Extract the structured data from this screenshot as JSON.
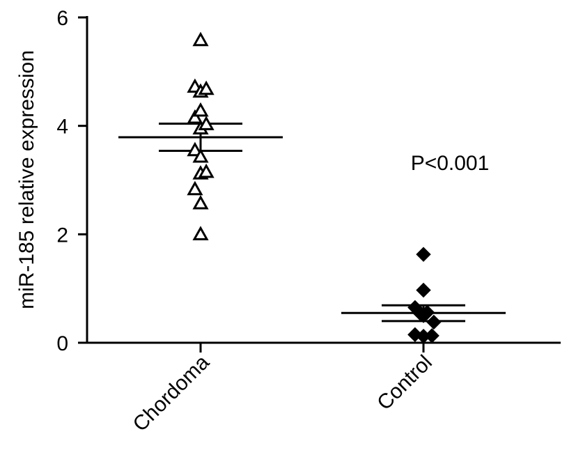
{
  "chart_data": {
    "type": "scatter",
    "ylabel": "miR-185 relative expression",
    "xlabel": "",
    "ylim": [
      0,
      6
    ],
    "yticks": [
      "0",
      "2",
      "4",
      "6"
    ],
    "categories": [
      "Chordoma",
      "Control"
    ],
    "series": [
      {
        "category": "Chordoma",
        "marker": "open-triangle",
        "mean": 3.79,
        "sem_upper": 4.04,
        "sem_lower": 3.54,
        "points": [
          {
            "offset": 0,
            "y": 5.58
          },
          {
            "offset": -0.3,
            "y": 4.72
          },
          {
            "offset": 0,
            "y": 4.63
          },
          {
            "offset": 0.3,
            "y": 4.68
          },
          {
            "offset": -0.3,
            "y": 4.15
          },
          {
            "offset": 0,
            "y": 4.28
          },
          {
            "offset": 0,
            "y": 3.95
          },
          {
            "offset": 0.3,
            "y": 4.03
          },
          {
            "offset": -0.3,
            "y": 3.55
          },
          {
            "offset": 0,
            "y": 3.43
          },
          {
            "offset": 0,
            "y": 3.12
          },
          {
            "offset": 0.3,
            "y": 3.15
          },
          {
            "offset": -0.3,
            "y": 2.83
          },
          {
            "offset": 0,
            "y": 2.57
          },
          {
            "offset": 0,
            "y": 2.0
          }
        ]
      },
      {
        "category": "Control",
        "marker": "filled-diamond",
        "mean": 0.55,
        "sem_upper": 0.69,
        "sem_lower": 0.4,
        "points": [
          {
            "offset": 0,
            "y": 1.63
          },
          {
            "offset": 0,
            "y": 0.97
          },
          {
            "offset": -0.45,
            "y": 0.65
          },
          {
            "offset": -0.2,
            "y": 0.55
          },
          {
            "offset": 0.2,
            "y": 0.56
          },
          {
            "offset": 0,
            "y": 0.5
          },
          {
            "offset": 0.55,
            "y": 0.38
          },
          {
            "offset": -0.45,
            "y": 0.15
          },
          {
            "offset": 0,
            "y": 0.12
          },
          {
            "offset": 0.45,
            "y": 0.13
          }
        ]
      }
    ],
    "annotations": [
      {
        "text": "P<0.001",
        "near": "Control"
      }
    ],
    "grid": false,
    "legend": "none"
  }
}
